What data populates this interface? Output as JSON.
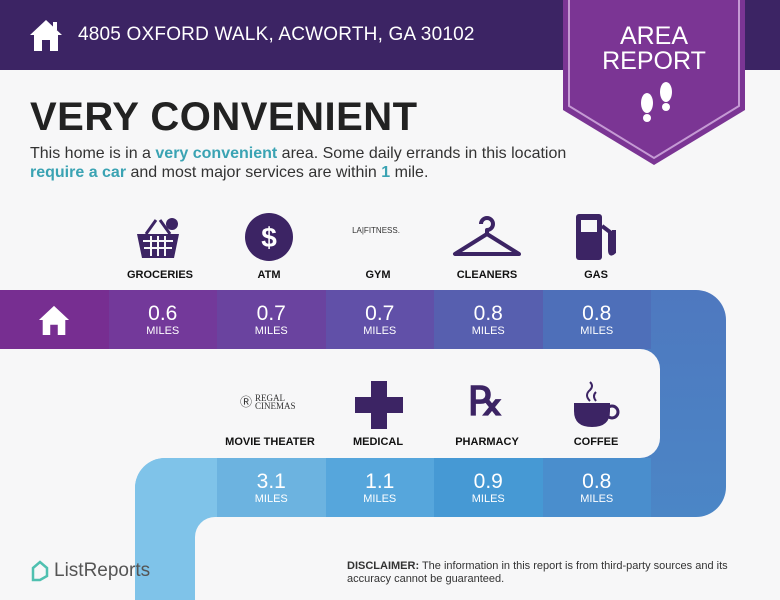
{
  "header": {
    "address": "4805 OXFORD WALK, ACWORTH, GA 30102",
    "badge_line1": "AREA",
    "badge_line2": "REPORT"
  },
  "title": "VERY CONVENIENT",
  "description": {
    "p1": "This home is in a ",
    "h1": "very convenient",
    "p2": " area. Some daily errands in this location ",
    "h2": "require a car",
    "p3": " and most major services are within ",
    "h3": "1",
    "p4": " mile."
  },
  "unit": "MILES",
  "row1": [
    {
      "label": "GROCERIES",
      "distance": "0.6",
      "icon": "grocery-basket-icon"
    },
    {
      "label": "ATM",
      "distance": "0.7",
      "icon": "dollar-icon"
    },
    {
      "label": "GYM",
      "distance": "0.7",
      "icon": "la-fitness-logo",
      "logo_text": "LA|FITNESS."
    },
    {
      "label": "CLEANERS",
      "distance": "0.8",
      "icon": "hanger-icon"
    },
    {
      "label": "GAS",
      "distance": "0.8",
      "icon": "gas-pump-icon"
    }
  ],
  "row2": [
    {
      "label": "MOVIE THEATER",
      "distance": "3.1",
      "icon": "regal-cinemas-logo",
      "logo_text": "REGAL CINEMAS"
    },
    {
      "label": "MEDICAL",
      "distance": "1.1",
      "icon": "medical-cross-icon"
    },
    {
      "label": "PHARMACY",
      "distance": "0.9",
      "icon": "rx-icon"
    },
    {
      "label": "COFFEE",
      "distance": "0.8",
      "icon": "coffee-cup-icon"
    }
  ],
  "footer": {
    "brand": "ListReports",
    "disclaimer_label": "DISCLAIMER:",
    "disclaimer_text": " The information in this report is from third-party sources and its accuracy cannot be guaranteed."
  },
  "colors": {
    "header": "#3c2464",
    "badge": "#7b3594",
    "accent": "#3aa3b3",
    "icon": "#3c2464"
  }
}
